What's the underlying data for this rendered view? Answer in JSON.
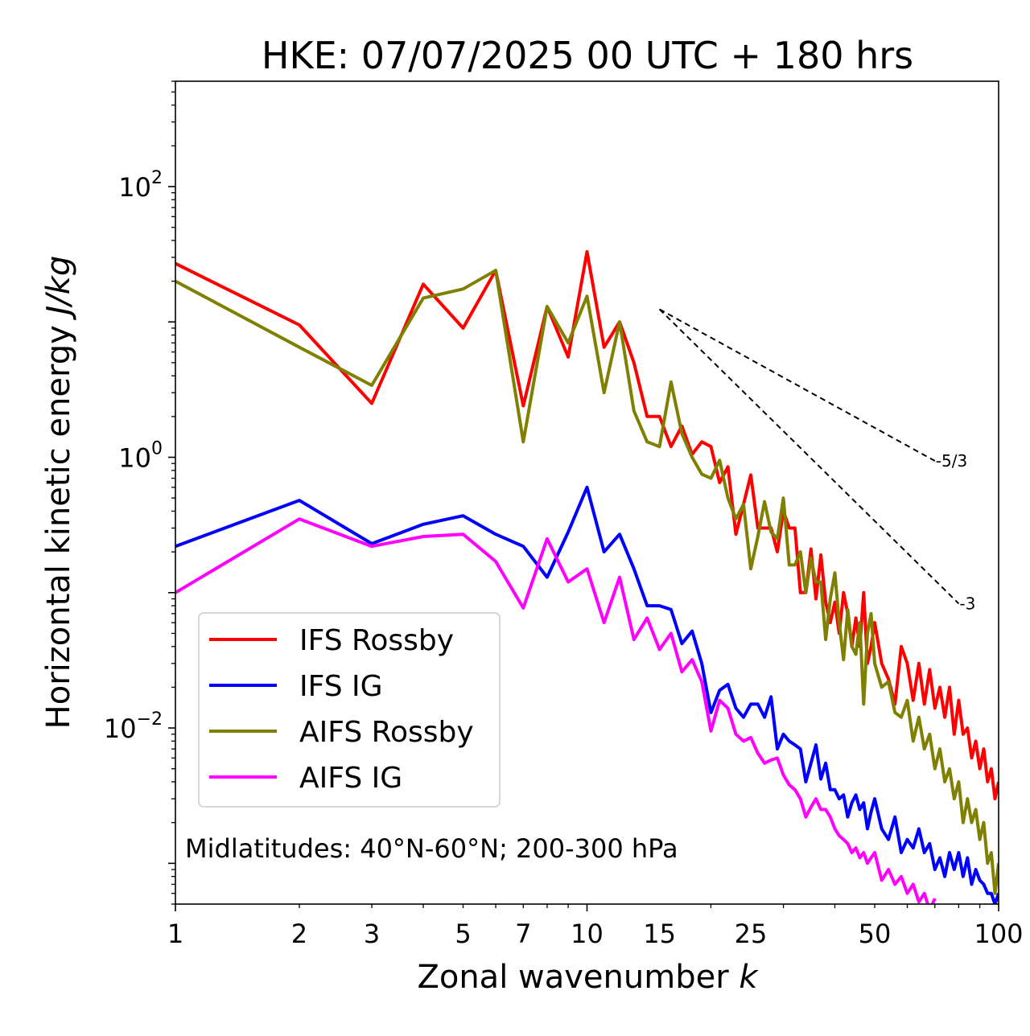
{
  "chart_data": {
    "type": "line",
    "title": "HKE: 07/07/2025 00 UTC + 180 hrs",
    "xlabel": "Zonal wavenumber",
    "xlabel_var": "k",
    "ylabel": "Horizontal kinetic energy",
    "ylabel_units": "J/kg",
    "x_scale": "log",
    "y_scale": "log",
    "xlim": [
      1,
      100
    ],
    "ylim": [
      0.0005,
      600
    ],
    "x_ticks": [
      1,
      2,
      3,
      5,
      7,
      10,
      15,
      25,
      50,
      100
    ],
    "x_tick_labels": [
      "1",
      "2",
      "3",
      "5",
      "7",
      "10",
      "15",
      "25",
      "50",
      "100"
    ],
    "y_ticks": [
      {
        "value": 100,
        "base": "10",
        "exp": "2"
      },
      {
        "value": 1,
        "base": "10",
        "exp": "0"
      },
      {
        "value": 0.01,
        "base": "10",
        "exp": "−2"
      }
    ],
    "grid": false,
    "legend_position": "lower-left",
    "annotation": "Midlatitudes: 40°N-60°N; 200-300 hPa",
    "reference_slopes": [
      {
        "label": "-5/3",
        "slope": -1.6667,
        "x": [
          15,
          70
        ],
        "y": [
          12.4,
          0.94
        ]
      },
      {
        "label": "-3",
        "slope": -3,
        "x": [
          15,
          80
        ],
        "y": [
          12.4,
          0.083
        ]
      }
    ],
    "series": [
      {
        "name": "IFS Rossby",
        "color": "#ff0000",
        "x": [
          1,
          2,
          3,
          4,
          5,
          6,
          7,
          8,
          9,
          10,
          11,
          12,
          13,
          14,
          15,
          16,
          17,
          18,
          19,
          20,
          21,
          22,
          23,
          24,
          25,
          26,
          27,
          28,
          29,
          30,
          31,
          32,
          33,
          34,
          35,
          36,
          37,
          38,
          39,
          40,
          41,
          42,
          43,
          44,
          45,
          46,
          47,
          48,
          49,
          50,
          52,
          54,
          56,
          58,
          60,
          62,
          64,
          66,
          68,
          70,
          72,
          74,
          76,
          78,
          80,
          82,
          84,
          86,
          88,
          90,
          92,
          94,
          96,
          98,
          100
        ],
        "y": [
          27,
          9.5,
          2.5,
          19,
          9,
          24,
          2.4,
          13,
          5.5,
          33,
          6.5,
          10,
          5,
          2,
          2,
          1.2,
          1.7,
          1.05,
          1.3,
          1.2,
          0.65,
          0.85,
          0.27,
          0.45,
          0.74,
          0.3,
          0.3,
          0.3,
          0.2,
          0.4,
          0.3,
          0.3,
          0.1,
          0.1,
          0.21,
          0.09,
          0.19,
          0.085,
          0.06,
          0.085,
          0.05,
          0.1,
          0.07,
          0.04,
          0.065,
          0.04,
          0.1,
          0.03,
          0.04,
          0.06,
          0.03,
          0.023,
          0.015,
          0.04,
          0.03,
          0.016,
          0.03,
          0.015,
          0.027,
          0.014,
          0.02,
          0.012,
          0.02,
          0.009,
          0.016,
          0.009,
          0.01,
          0.006,
          0.008,
          0.005,
          0.007,
          0.004,
          0.005,
          0.003,
          0.004
        ]
      },
      {
        "name": "IFS IG",
        "color": "#0000ff",
        "x": [
          1,
          2,
          3,
          4,
          5,
          6,
          7,
          8,
          9,
          10,
          11,
          12,
          13,
          14,
          15,
          16,
          17,
          18,
          19,
          20,
          21,
          22,
          23,
          24,
          25,
          26,
          27,
          28,
          29,
          30,
          31,
          32,
          33,
          34,
          35,
          36,
          37,
          38,
          39,
          40,
          41,
          42,
          43,
          44,
          45,
          46,
          47,
          48,
          49,
          50,
          52,
          54,
          56,
          58,
          60,
          62,
          64,
          66,
          68,
          70,
          72,
          74,
          76,
          78,
          80,
          82,
          84,
          86,
          88,
          90,
          92,
          94,
          96,
          98,
          100
        ],
        "y": [
          0.22,
          0.48,
          0.23,
          0.32,
          0.37,
          0.27,
          0.22,
          0.13,
          0.28,
          0.6,
          0.2,
          0.27,
          0.15,
          0.08,
          0.08,
          0.075,
          0.042,
          0.052,
          0.03,
          0.013,
          0.019,
          0.021,
          0.014,
          0.012,
          0.015,
          0.015,
          0.012,
          0.017,
          0.007,
          0.009,
          0.008,
          0.0075,
          0.007,
          0.004,
          0.0055,
          0.0075,
          0.0042,
          0.0055,
          0.0035,
          0.0035,
          0.003,
          0.0032,
          0.0022,
          0.0028,
          0.0032,
          0.0025,
          0.0028,
          0.0018,
          0.0024,
          0.003,
          0.0018,
          0.0015,
          0.0022,
          0.0012,
          0.0015,
          0.0013,
          0.0018,
          0.0012,
          0.0014,
          0.0009,
          0.0011,
          0.0008,
          0.0012,
          0.0009,
          0.0012,
          0.0008,
          0.0011,
          0.0007,
          0.0009,
          0.00075,
          0.0007,
          0.0006,
          0.0006,
          0.0005,
          0.0006
        ]
      },
      {
        "name": "AIFS Rossby",
        "color": "#808000",
        "x": [
          1,
          2,
          3,
          4,
          5,
          6,
          7,
          8,
          9,
          10,
          11,
          12,
          13,
          14,
          15,
          16,
          17,
          18,
          19,
          20,
          21,
          22,
          23,
          24,
          25,
          26,
          27,
          28,
          29,
          30,
          31,
          32,
          33,
          34,
          35,
          36,
          37,
          38,
          39,
          40,
          41,
          42,
          43,
          44,
          45,
          46,
          47,
          48,
          49,
          50,
          52,
          54,
          56,
          58,
          60,
          62,
          64,
          66,
          68,
          70,
          72,
          74,
          76,
          78,
          80,
          82,
          84,
          86,
          88,
          90,
          92,
          94,
          96,
          98,
          100
        ],
        "y": [
          20,
          6.5,
          3.4,
          15,
          17.5,
          24,
          1.3,
          13,
          7,
          15.5,
          3,
          10,
          2.2,
          1.3,
          1.2,
          3.6,
          1.5,
          1,
          0.75,
          0.7,
          0.95,
          0.5,
          0.35,
          0.45,
          0.15,
          0.26,
          0.47,
          0.28,
          0.25,
          0.5,
          0.16,
          0.16,
          0.2,
          0.1,
          0.18,
          0.12,
          0.12,
          0.045,
          0.09,
          0.14,
          0.06,
          0.032,
          0.075,
          0.04,
          0.035,
          0.06,
          0.015,
          0.05,
          0.07,
          0.03,
          0.02,
          0.022,
          0.013,
          0.012,
          0.016,
          0.008,
          0.012,
          0.007,
          0.009,
          0.005,
          0.007,
          0.004,
          0.005,
          0.003,
          0.004,
          0.002,
          0.003,
          0.002,
          0.0025,
          0.0015,
          0.002,
          0.001,
          0.0012,
          0.0006,
          0.001
        ]
      },
      {
        "name": "AIFS IG",
        "color": "#ff00ff",
        "x": [
          1,
          2,
          3,
          4,
          5,
          6,
          7,
          8,
          9,
          10,
          11,
          12,
          13,
          14,
          15,
          16,
          17,
          18,
          19,
          20,
          21,
          22,
          23,
          24,
          25,
          26,
          27,
          28,
          29,
          30,
          31,
          32,
          33,
          34,
          35,
          36,
          37,
          38,
          39,
          40,
          41,
          42,
          43,
          44,
          45,
          46,
          47,
          48,
          49,
          50,
          52,
          54,
          56,
          58,
          60,
          62,
          64,
          66,
          68,
          70
        ],
        "y": [
          0.1,
          0.35,
          0.22,
          0.26,
          0.27,
          0.17,
          0.077,
          0.25,
          0.12,
          0.15,
          0.06,
          0.13,
          0.045,
          0.065,
          0.038,
          0.05,
          0.026,
          0.032,
          0.022,
          0.0095,
          0.016,
          0.014,
          0.009,
          0.008,
          0.0085,
          0.0065,
          0.0055,
          0.0058,
          0.006,
          0.0045,
          0.0038,
          0.0035,
          0.003,
          0.0022,
          0.0026,
          0.003,
          0.0025,
          0.0025,
          0.0022,
          0.0018,
          0.0016,
          0.0015,
          0.0014,
          0.0012,
          0.0013,
          0.0011,
          0.0012,
          0.001,
          0.0011,
          0.0012,
          0.00075,
          0.0009,
          0.0007,
          0.0008,
          0.0006,
          0.0007,
          0.00052,
          0.0006,
          0.00045,
          0.00055
        ]
      }
    ]
  }
}
